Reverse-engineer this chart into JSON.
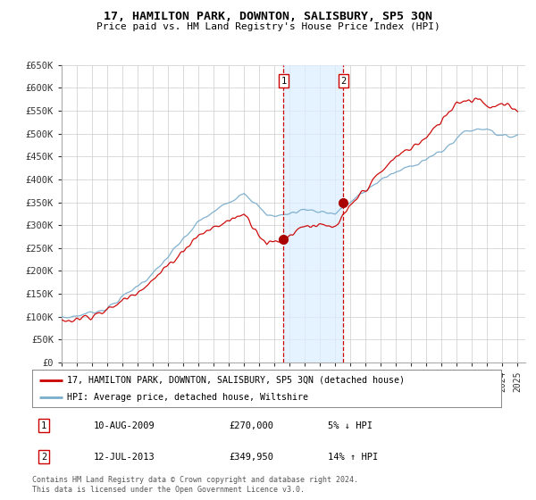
{
  "title": "17, HAMILTON PARK, DOWNTON, SALISBURY, SP5 3QN",
  "subtitle": "Price paid vs. HM Land Registry's House Price Index (HPI)",
  "ylim": [
    0,
    650000
  ],
  "yticks": [
    0,
    50000,
    100000,
    150000,
    200000,
    250000,
    300000,
    350000,
    400000,
    450000,
    500000,
    550000,
    600000,
    650000
  ],
  "ytick_labels": [
    "£0",
    "£50K",
    "£100K",
    "£150K",
    "£200K",
    "£250K",
    "£300K",
    "£350K",
    "£400K",
    "£450K",
    "£500K",
    "£550K",
    "£600K",
    "£650K"
  ],
  "xlim_start": 1995.0,
  "xlim_end": 2025.5,
  "sale1_date": 2009.6,
  "sale1_price": 270000,
  "sale1_label": "1",
  "sale2_date": 2013.53,
  "sale2_price": 349950,
  "sale2_label": "2",
  "red_line_color": "#cc0000",
  "blue_line_color": "#7aadcc",
  "shade_color": "#ddeeff",
  "grid_color": "#cccccc",
  "marker_color": "#aa0000",
  "legend_line1": "17, HAMILTON PARK, DOWNTON, SALISBURY, SP5 3QN (detached house)",
  "legend_line2": "HPI: Average price, detached house, Wiltshire",
  "table_row1_num": "1",
  "table_row1_date": "10-AUG-2009",
  "table_row1_price": "£270,000",
  "table_row1_hpi": "5% ↓ HPI",
  "table_row2_num": "2",
  "table_row2_date": "12-JUL-2013",
  "table_row2_price": "£349,950",
  "table_row2_hpi": "14% ↑ HPI",
  "footer": "Contains HM Land Registry data © Crown copyright and database right 2024.\nThis data is licensed under the Open Government Licence v3.0.",
  "background_color": "#ffffff",
  "plot_bg_color": "#ffffff"
}
